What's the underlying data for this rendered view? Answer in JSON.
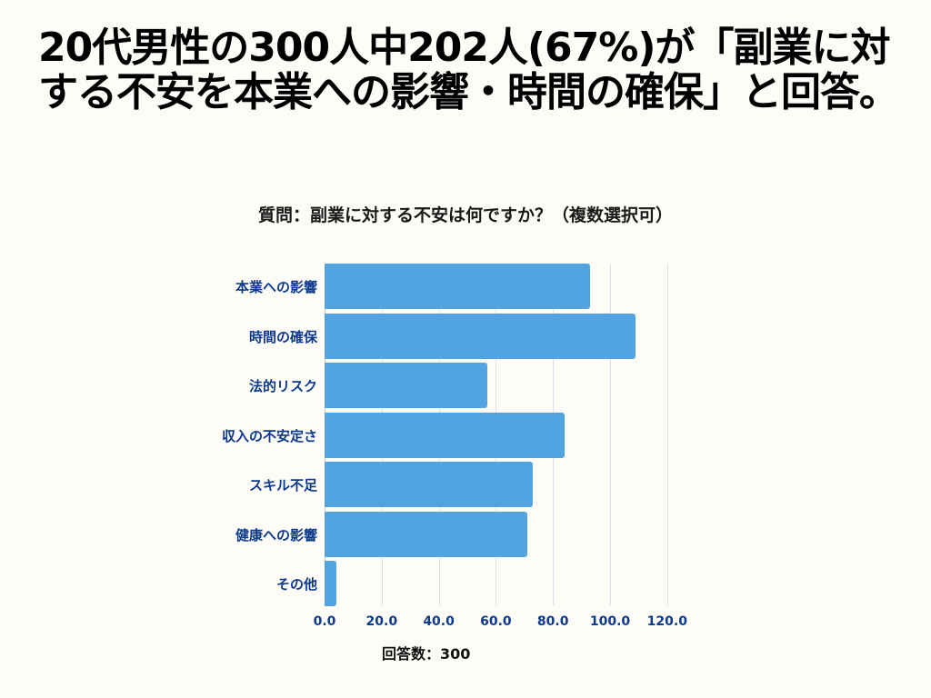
{
  "headline": "20代男性の300人中202人(67%)が「副業に対する不安を本業への影響・時間の確保」と回答。",
  "chart_title": "質問：副業に対する不安は何ですか？（複数選択可）",
  "footnote": "回答数：300",
  "colors": {
    "bar": "#52a4e0",
    "label": "#0e3a8c",
    "background": "#fdfcf7"
  },
  "chart_data": {
    "type": "bar",
    "orientation": "horizontal",
    "title": "質問：副業に対する不安は何ですか？（複数選択可）",
    "categories": [
      "本業への影響",
      "時間の確保",
      "法的リスク",
      "収入の不安定さ",
      "スキル不足",
      "健康への影響",
      "その他"
    ],
    "values": [
      93,
      109,
      57,
      84,
      73,
      71,
      4
    ],
    "xlabel": "回答数：300",
    "ylabel": "",
    "xlim": [
      0,
      120
    ],
    "xticks": [
      "0.0",
      "20.0",
      "40.0",
      "60.0",
      "80.0",
      "100.0",
      "120.0"
    ],
    "grid": true,
    "legend": null
  }
}
